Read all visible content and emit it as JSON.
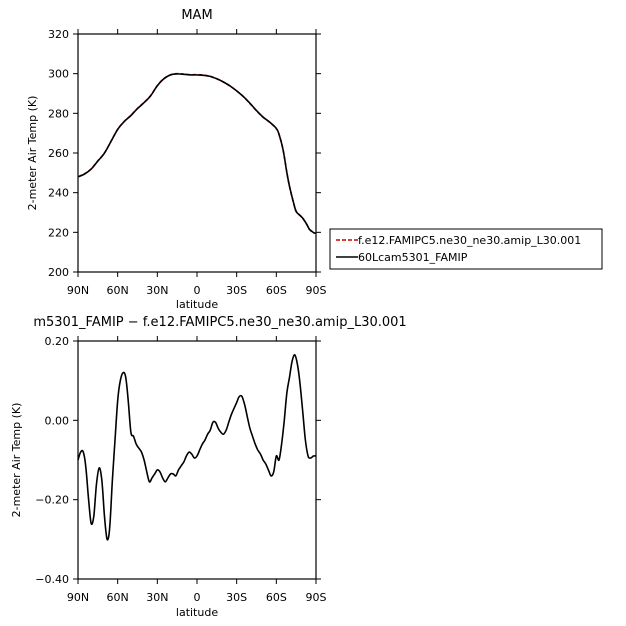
{
  "chart_data": [
    {
      "type": "line",
      "title": "MAM",
      "xlabel": "latitude",
      "ylabel": "2-meter Air Temp (K)",
      "xlim": [
        90,
        -90
      ],
      "ylim": [
        200,
        320
      ],
      "xticks": [
        90,
        60,
        30,
        0,
        -30,
        -60,
        -90
      ],
      "xtick_labels": [
        "90N",
        "60N",
        "30N",
        "0",
        "30S",
        "60S",
        "90S"
      ],
      "yticks": [
        200,
        220,
        240,
        260,
        280,
        300,
        320
      ],
      "ytick_labels": [
        "200",
        "220",
        "240",
        "260",
        "280",
        "300",
        "320"
      ],
      "legend_position": "right, outside plot",
      "series": [
        {
          "name": "f.e12.FAMIPC5.ne30_ne30.amip_L30.001",
          "color": "#cc0000",
          "dash": "dashed",
          "x": [
            90,
            85,
            80,
            75,
            70,
            65,
            60,
            55,
            50,
            45,
            40,
            35,
            30,
            25,
            20,
            15,
            10,
            5,
            0,
            -5,
            -10,
            -15,
            -20,
            -25,
            -30,
            -35,
            -40,
            -45,
            -50,
            -55,
            -60,
            -62,
            -65,
            -68,
            -70,
            -73,
            -75,
            -78,
            -80,
            -83,
            -85,
            -88,
            -90
          ],
          "y": [
            248,
            249.5,
            252,
            256,
            260,
            266,
            272,
            276,
            279,
            282.5,
            285.5,
            289,
            294,
            297.5,
            299.5,
            300,
            299.8,
            299.5,
            299.5,
            299.3,
            298.6,
            297.4,
            295.8,
            293.8,
            291.3,
            288.5,
            285,
            281.3,
            278,
            275.5,
            272.3,
            269.5,
            262,
            250,
            243,
            235,
            230.5,
            228.5,
            227,
            224,
            221.5,
            219.8,
            219.6
          ]
        },
        {
          "name": "60Lcam5301_FAMIP",
          "color": "#000000",
          "dash": "solid",
          "x": [
            90,
            85,
            80,
            75,
            70,
            65,
            60,
            55,
            50,
            45,
            40,
            35,
            30,
            25,
            20,
            15,
            10,
            5,
            0,
            -5,
            -10,
            -15,
            -20,
            -25,
            -30,
            -35,
            -40,
            -45,
            -50,
            -55,
            -60,
            -62,
            -65,
            -68,
            -70,
            -73,
            -75,
            -78,
            -80,
            -83,
            -85,
            -88,
            -90
          ],
          "y": [
            248,
            249.4,
            251.9,
            255.9,
            259.9,
            265.9,
            271.9,
            275.9,
            278.9,
            282.4,
            285.4,
            288.9,
            293.9,
            297.4,
            299.4,
            299.9,
            299.7,
            299.4,
            299.4,
            299.2,
            298.6,
            297.4,
            295.8,
            293.8,
            291.3,
            288.5,
            285.1,
            281.4,
            278.1,
            275.6,
            272.4,
            269.5,
            262,
            250,
            243,
            235,
            230.5,
            228.5,
            227.1,
            224.1,
            221.6,
            219.9,
            219.5
          ]
        }
      ]
    },
    {
      "type": "line",
      "title": "m5301_FAMIP  −  f.e12.FAMIPC5.ne30_ne30.amip_L30.001",
      "xlabel": "latitude",
      "ylabel": "2-meter Air Temp (K)",
      "xlim": [
        90,
        -90
      ],
      "ylim": [
        -0.4,
        0.2
      ],
      "xticks": [
        90,
        60,
        30,
        0,
        -30,
        -60,
        -90
      ],
      "xtick_labels": [
        "90N",
        "60N",
        "30N",
        "0",
        "30S",
        "60S",
        "90S"
      ],
      "yticks": [
        -0.4,
        -0.2,
        0.0,
        0.2
      ],
      "ytick_labels": [
        "−0.40",
        "−0.20",
        "0.00",
        "0.20"
      ],
      "series": [
        {
          "color": "#000000",
          "dash": "solid",
          "x": [
            90,
            88,
            86,
            84,
            82,
            80,
            78,
            76,
            74,
            72,
            70,
            68,
            66,
            64,
            62,
            60,
            58,
            56,
            54,
            52,
            50,
            48,
            46,
            44,
            42,
            40,
            38,
            36,
            34,
            32,
            30,
            28,
            26,
            24,
            22,
            20,
            18,
            16,
            14,
            12,
            10,
            8,
            6,
            4,
            2,
            0,
            -2,
            -4,
            -6,
            -8,
            -10,
            -12,
            -14,
            -16,
            -18,
            -20,
            -22,
            -24,
            -26,
            -28,
            -30,
            -32,
            -34,
            -36,
            -38,
            -40,
            -42,
            -44,
            -46,
            -48,
            -50,
            -52,
            -54,
            -56,
            -58,
            -60,
            -62,
            -64,
            -66,
            -68,
            -70,
            -72,
            -74,
            -76,
            -78,
            -80,
            -82,
            -84,
            -86,
            -88,
            -90
          ],
          "y": [
            -0.1,
            -0.08,
            -0.08,
            -0.12,
            -0.2,
            -0.26,
            -0.24,
            -0.16,
            -0.12,
            -0.15,
            -0.24,
            -0.3,
            -0.27,
            -0.15,
            -0.05,
            0.05,
            0.1,
            0.12,
            0.11,
            0.05,
            -0.03,
            -0.04,
            -0.06,
            -0.07,
            -0.08,
            -0.1,
            -0.13,
            -0.155,
            -0.145,
            -0.135,
            -0.125,
            -0.13,
            -0.145,
            -0.155,
            -0.145,
            -0.135,
            -0.135,
            -0.14,
            -0.125,
            -0.115,
            -0.105,
            -0.09,
            -0.08,
            -0.085,
            -0.095,
            -0.09,
            -0.075,
            -0.06,
            -0.05,
            -0.035,
            -0.025,
            -0.005,
            -0.005,
            -0.02,
            -0.03,
            -0.035,
            -0.025,
            -0.005,
            0.015,
            0.03,
            0.045,
            0.06,
            0.06,
            0.04,
            0.01,
            -0.02,
            -0.04,
            -0.06,
            -0.075,
            -0.085,
            -0.1,
            -0.11,
            -0.125,
            -0.14,
            -0.13,
            -0.09,
            -0.1,
            -0.06,
            0.0,
            0.07,
            0.11,
            0.15,
            0.165,
            0.14,
            0.09,
            0.02,
            -0.05,
            -0.09,
            -0.095,
            -0.09,
            -0.09
          ]
        }
      ]
    }
  ]
}
